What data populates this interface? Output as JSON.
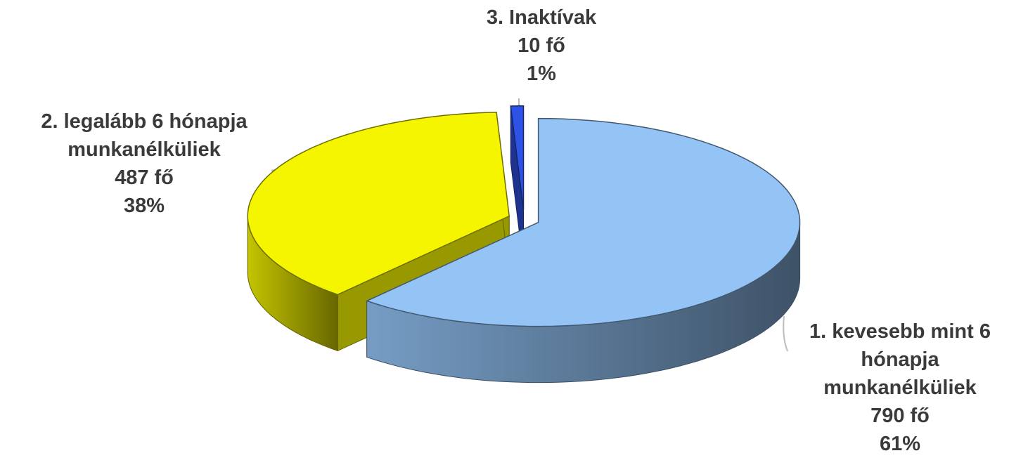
{
  "chart_data": {
    "type": "pie3d",
    "categories": [
      "1. kevesebb mint 6 hónapja munkanélküliek",
      "2. legalább 6 hónapja munkanélküliek",
      "3. Inaktívak"
    ],
    "values": [
      790,
      487,
      10
    ],
    "value_labels": [
      "790 fő",
      "487 fő",
      "10 fő"
    ],
    "percentages": [
      61,
      38,
      1
    ],
    "percent_labels": [
      "61%",
      "38%",
      "1%"
    ],
    "colors": [
      "#94c4f6",
      "#f5f500",
      "#2f52e6"
    ]
  }
}
